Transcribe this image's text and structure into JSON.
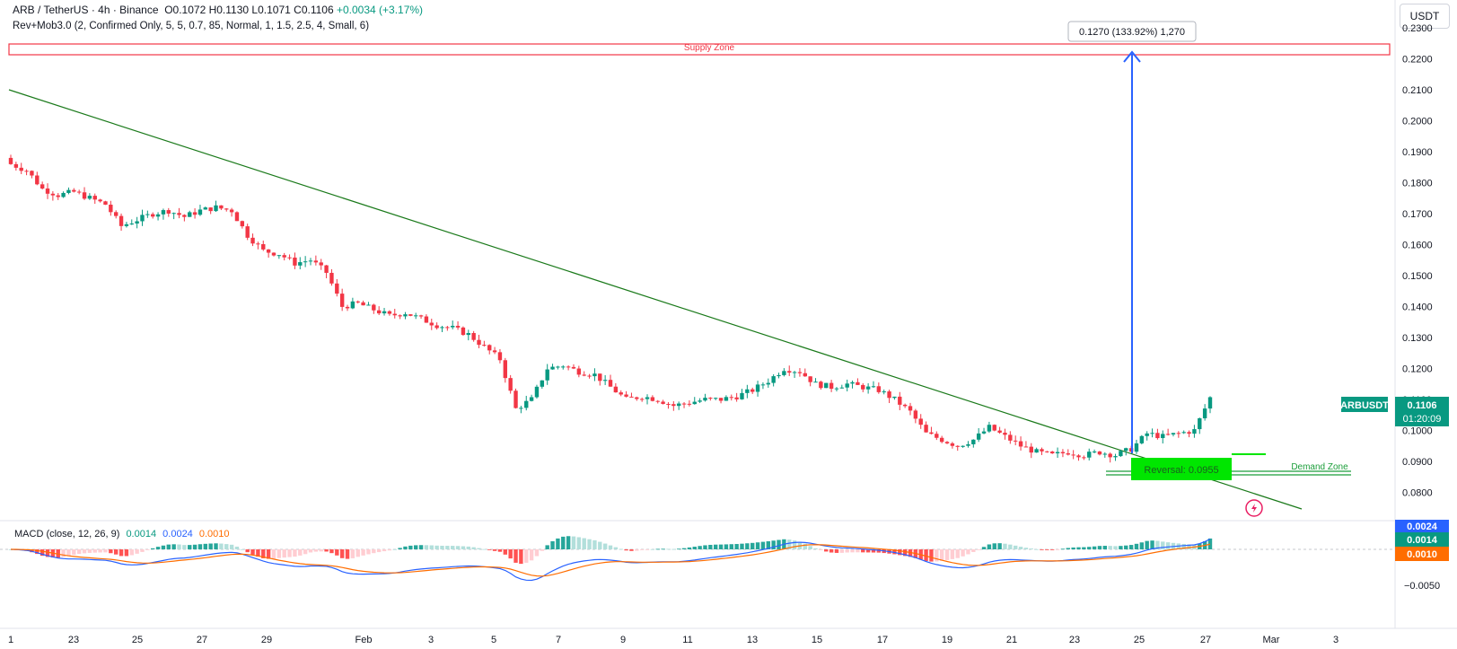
{
  "header": {
    "symbol_line": "ARB / TetherUS · 4h · Binance",
    "open": "O0.1072",
    "high": "H0.1130",
    "low": "L0.1071",
    "close": "C0.1106",
    "change": "+0.0034 (+3.17%)",
    "indicator": "Rev+Mob3.0 (2, Confirmed Only, 5, 5, 0.7, 85, Normal, 1, 1.5, 2.5, 4, Small, 6)"
  },
  "currency_button": "USDT",
  "annotations": {
    "supply_zone": "Supply Zone",
    "demand_zone": "Demand Zone",
    "measure_label": "0.1270 (133.92%) 1,270",
    "reversal_label": "Reversal: 0.0955"
  },
  "price_axis": {
    "labels": [
      "0.2300",
      "0.2200",
      "0.2100",
      "0.2000",
      "0.1900",
      "0.1800",
      "0.1700",
      "0.1600",
      "0.1500",
      "0.1400",
      "0.1300",
      "0.1200",
      "0.1100",
      "0.1000",
      "0.0900",
      "0.0800"
    ],
    "symbol_tag": "ARBUSDT",
    "last_price": "0.1106",
    "countdown": "01:20:09"
  },
  "macd": {
    "title": "MACD (close, 12, 26, 9)",
    "hist_value": "0.0014",
    "macd_value": "0.0024",
    "signal_value": "0.0010",
    "axis_tags": [
      "0.0024",
      "0.0014",
      "0.0010"
    ],
    "axis_label": "−0.0050"
  },
  "time_axis": [
    "1",
    "23",
    "25",
    "27",
    "29",
    "Feb",
    "3",
    "5",
    "7",
    "9",
    "11",
    "13",
    "15",
    "17",
    "19",
    "21",
    "23",
    "25",
    "27",
    "Mar",
    "3"
  ],
  "colors": {
    "up": "#089981",
    "down": "#f23645",
    "macd_line": "#2962ff",
    "signal_line": "#ff6d00",
    "trend_line": "#1b7a1b",
    "supply": "#f23645",
    "demand": "#1b9e3a",
    "measure": "#2962ff",
    "reversal_bg": "#00e600"
  },
  "chart_data": {
    "type": "candlestick",
    "symbol": "ARB / TetherUS",
    "timeframe": "4h",
    "ylim": [
      0.075,
      0.235
    ],
    "close_path": [
      [
        0,
        0.186
      ],
      [
        3,
        0.184
      ],
      [
        6,
        0.178
      ],
      [
        9,
        0.176
      ],
      [
        12,
        0.177
      ],
      [
        15,
        0.175
      ],
      [
        18,
        0.173
      ],
      [
        21,
        0.166
      ],
      [
        24,
        0.168
      ],
      [
        27,
        0.17
      ],
      [
        30,
        0.171
      ],
      [
        33,
        0.169
      ],
      [
        36,
        0.171
      ],
      [
        39,
        0.172
      ],
      [
        42,
        0.171
      ],
      [
        45,
        0.163
      ],
      [
        48,
        0.158
      ],
      [
        51,
        0.157
      ],
      [
        54,
        0.154
      ],
      [
        57,
        0.155
      ],
      [
        60,
        0.151
      ],
      [
        63,
        0.14
      ],
      [
        66,
        0.141
      ],
      [
        69,
        0.139
      ],
      [
        72,
        0.137
      ],
      [
        75,
        0.138
      ],
      [
        78,
        0.136
      ],
      [
        81,
        0.134
      ],
      [
        84,
        0.133
      ],
      [
        87,
        0.131
      ],
      [
        90,
        0.127
      ],
      [
        93,
        0.123
      ],
      [
        96,
        0.107
      ],
      [
        99,
        0.11
      ],
      [
        102,
        0.12
      ],
      [
        105,
        0.121
      ],
      [
        108,
        0.119
      ],
      [
        111,
        0.118
      ],
      [
        114,
        0.114
      ],
      [
        117,
        0.11
      ],
      [
        120,
        0.111
      ],
      [
        123,
        0.11
      ],
      [
        126,
        0.108
      ],
      [
        129,
        0.109
      ],
      [
        132,
        0.11
      ],
      [
        135,
        0.11
      ],
      [
        138,
        0.111
      ],
      [
        141,
        0.113
      ],
      [
        144,
        0.116
      ],
      [
        147,
        0.12
      ],
      [
        150,
        0.119
      ],
      [
        153,
        0.115
      ],
      [
        156,
        0.114
      ],
      [
        159,
        0.115
      ],
      [
        162,
        0.114
      ],
      [
        165,
        0.113
      ],
      [
        168,
        0.11
      ],
      [
        171,
        0.106
      ],
      [
        174,
        0.099
      ],
      [
        177,
        0.097
      ],
      [
        180,
        0.095
      ],
      [
        183,
        0.097
      ],
      [
        186,
        0.101
      ],
      [
        189,
        0.098
      ],
      [
        192,
        0.095
      ],
      [
        195,
        0.093
      ],
      [
        198,
        0.092
      ],
      [
        201,
        0.093
      ],
      [
        204,
        0.092
      ],
      [
        207,
        0.093
      ],
      [
        210,
        0.092
      ],
      [
        213,
        0.094
      ],
      [
        216,
        0.099
      ],
      [
        219,
        0.098
      ],
      [
        222,
        0.099
      ],
      [
        225,
        0.1
      ],
      [
        228,
        0.1106
      ]
    ],
    "levels": {
      "supply_zone": [
        0.2205,
        0.2245
      ],
      "demand_zone": [
        0.0885,
        0.0895
      ],
      "reversal": 0.0955
    }
  }
}
